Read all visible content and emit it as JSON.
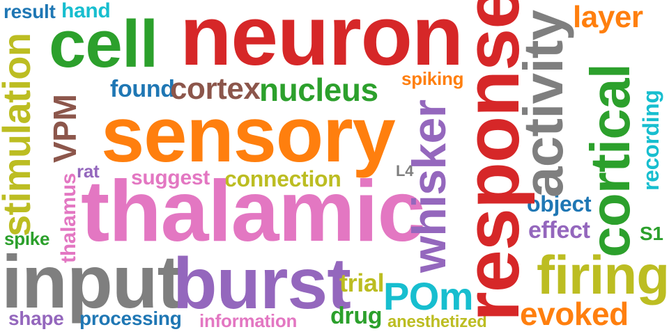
{
  "colors": {
    "blue": "#1f77b4",
    "orange": "#ff7f0e",
    "green": "#2ca02c",
    "red": "#d62728",
    "purple": "#9467bd",
    "brown": "#8c564b",
    "pink": "#e377c2",
    "gray": "#7f7f7f",
    "olive": "#bcbd22",
    "cyan": "#17becf"
  },
  "words": {
    "result": "result",
    "hand": "hand",
    "cell": "cell",
    "neuron": "neuron",
    "layer": "layer",
    "stimulation": "stimulation",
    "found": "found",
    "cortex": "cortex",
    "nucleus": "nucleus",
    "spiking": "spiking",
    "VPM": "VPM",
    "sensory": "sensory",
    "whisker": "whisker",
    "response": "response",
    "activity": "activity",
    "cortical": "cortical",
    "recording": "recording",
    "thalamus": "thalamus",
    "rat": "rat",
    "suggest": "suggest",
    "connection": "connection",
    "L4": "L4",
    "thalamic": "thalamic",
    "object": "object",
    "spike": "spike",
    "effect": "effect",
    "S1": "S1",
    "input": "input",
    "burst": "burst",
    "firing": "firing",
    "trial": "trial",
    "POm": "POm",
    "shape": "shape",
    "processing": "processing",
    "information": "information",
    "drug": "drug",
    "anesthetized": "anesthetized",
    "evoked": "evoked"
  }
}
